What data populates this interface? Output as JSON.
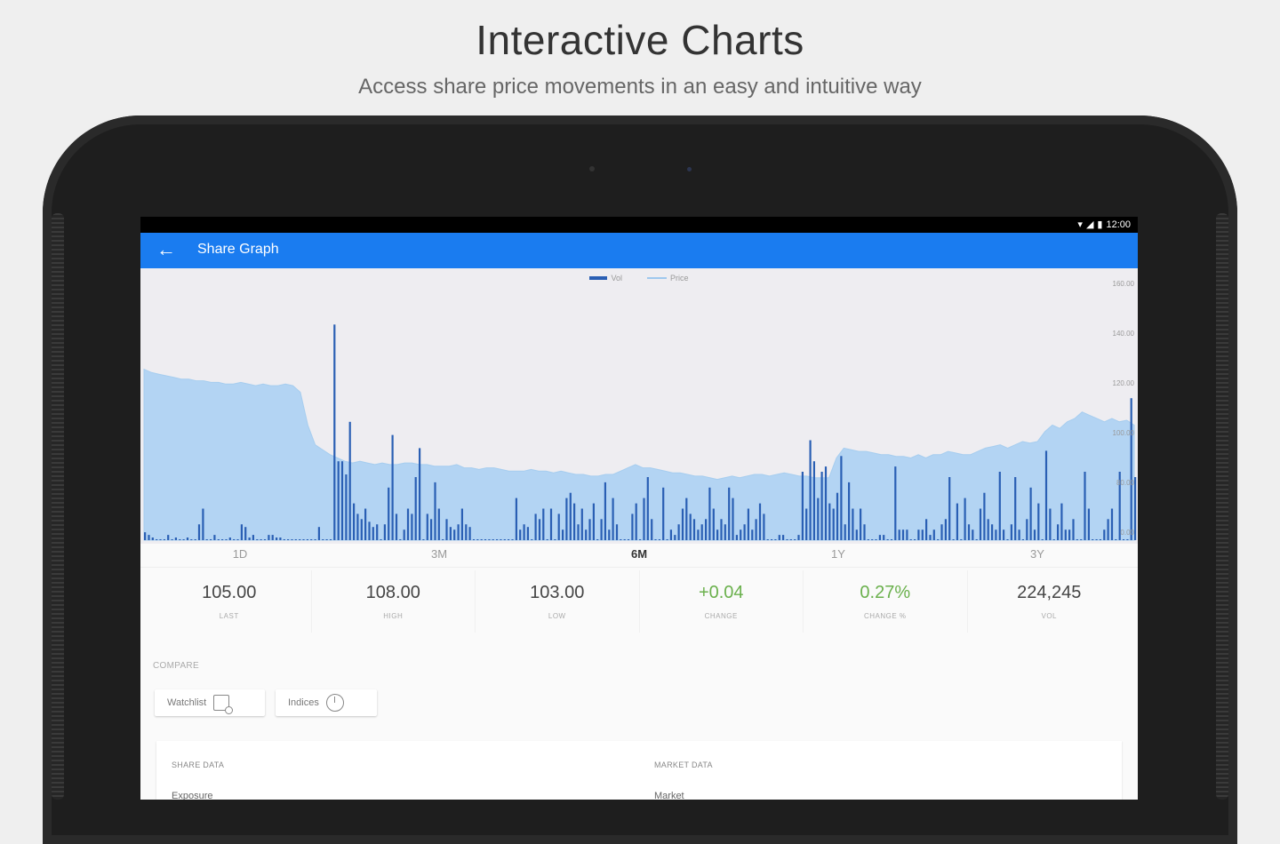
{
  "hero": {
    "title": "Interactive Charts",
    "subtitle": "Access share price movements in an easy and intuitive way"
  },
  "status_bar": {
    "time": "12:00",
    "icons": [
      "wifi-icon",
      "signal-icon",
      "battery-icon"
    ]
  },
  "app_bar": {
    "title": "Share Graph",
    "back_icon": "arrow-left-icon"
  },
  "colors": {
    "app_bar": "#1a7cf0",
    "volume_bar": "#2a5fb4",
    "price_area": "#b3d4f3",
    "positive": "#6ab04c"
  },
  "chart_data": {
    "type": "bar",
    "legend": [
      "Vol",
      "Price"
    ],
    "legend_placement": "top-center",
    "y_axis_side": "right",
    "yticks": [
      "160.00",
      "140.00",
      "120.00",
      "100.00",
      "80.00",
      "0.00"
    ],
    "series": [
      {
        "name": "Vol",
        "type": "bar",
        "values": [
          3,
          2,
          1,
          0,
          0,
          0,
          2,
          0,
          1,
          0,
          0,
          1,
          0,
          0,
          6,
          12,
          0,
          0,
          2,
          0,
          0,
          0,
          1,
          0,
          0,
          6,
          5,
          1,
          2,
          0,
          0,
          0,
          2,
          2,
          1,
          1,
          0,
          0,
          0,
          0,
          0,
          0,
          0,
          0,
          0,
          5,
          0,
          0,
          0,
          82,
          30,
          30,
          25,
          45,
          14,
          10,
          8,
          12,
          7,
          5,
          6,
          0,
          6,
          20,
          40,
          10,
          0,
          4,
          12,
          10,
          24,
          35,
          0,
          10,
          8,
          22,
          12,
          0,
          8,
          5,
          4,
          6,
          12,
          6,
          5,
          0,
          0,
          0,
          0,
          0,
          0,
          0,
          0,
          0,
          0,
          0,
          16,
          4,
          6,
          5,
          0,
          10,
          8,
          12,
          0,
          12,
          0,
          10,
          4,
          16,
          18,
          14,
          6,
          12,
          4,
          8,
          14,
          0,
          8,
          22,
          4,
          16,
          6,
          0,
          0,
          0,
          10,
          14,
          0,
          16,
          24,
          8,
          0,
          0,
          20,
          0,
          4,
          2,
          6,
          12,
          16,
          10,
          8,
          4,
          6,
          8,
          20,
          12,
          4,
          8,
          6,
          20,
          16,
          2,
          4,
          6,
          12,
          4,
          8,
          14,
          10,
          0,
          0,
          0,
          2,
          2,
          0,
          0,
          0,
          2,
          26,
          12,
          38,
          30,
          16,
          26,
          28,
          14,
          12,
          18,
          32,
          6,
          22,
          12,
          4,
          12,
          6,
          0,
          0,
          0,
          2,
          2,
          0,
          0,
          28,
          4,
          4,
          4,
          0,
          0,
          4,
          4,
          8,
          2,
          4,
          0,
          6,
          8,
          24,
          0,
          14,
          0,
          16,
          6,
          4,
          0,
          12,
          18,
          8,
          6,
          4,
          26,
          4,
          0,
          6,
          24,
          4,
          0,
          8,
          20,
          4,
          14,
          0,
          34,
          12,
          0,
          6,
          14,
          4,
          4,
          8,
          0,
          0,
          26,
          12,
          0,
          0,
          0,
          4,
          8,
          12,
          0,
          26,
          0,
          0,
          54,
          24
        ]
      },
      {
        "name": "Price",
        "type": "area",
        "values": [
          104,
          102,
          101,
          100,
          99,
          98,
          98,
          97,
          97,
          96,
          96,
          95,
          95,
          96,
          95,
          94,
          95,
          94,
          94,
          95,
          94,
          90,
          70,
          58,
          55,
          52,
          50,
          48,
          47,
          48,
          47,
          46,
          47,
          46,
          46,
          47,
          47,
          46,
          46,
          45,
          45,
          45,
          46,
          44,
          44,
          43,
          44,
          44,
          43,
          42,
          42,
          42,
          43,
          42,
          42,
          41,
          42,
          41,
          40,
          40,
          39,
          39,
          40,
          40,
          42,
          44,
          46,
          44,
          44,
          43,
          42,
          41,
          41,
          40,
          39,
          39,
          38,
          37,
          38,
          39,
          38,
          39,
          40,
          40,
          39,
          40,
          41,
          40,
          39,
          39,
          38,
          38,
          38,
          50,
          56,
          55,
          54,
          54,
          53,
          52,
          52,
          51,
          51,
          50,
          52,
          50,
          52,
          52,
          54,
          53,
          52,
          52,
          54,
          56,
          57,
          58,
          56,
          58,
          60,
          59,
          60,
          66,
          70,
          68,
          72,
          74,
          78,
          76,
          74,
          72,
          74,
          72,
          73,
          70
        ]
      }
    ]
  },
  "periods": [
    {
      "label": "1D",
      "active": false
    },
    {
      "label": "3M",
      "active": false
    },
    {
      "label": "6M",
      "active": true
    },
    {
      "label": "1Y",
      "active": false
    },
    {
      "label": "3Y",
      "active": false
    }
  ],
  "stats": [
    {
      "value": "105.00",
      "label": "LAST",
      "positive": false
    },
    {
      "value": "108.00",
      "label": "HIGH",
      "positive": false
    },
    {
      "value": "103.00",
      "label": "LOW",
      "positive": false
    },
    {
      "value": "+0.04",
      "label": "CHANGE",
      "positive": true
    },
    {
      "value": "0.27%",
      "label": "CHANGE %",
      "positive": true
    },
    {
      "value": "224,245",
      "label": "VOL",
      "positive": false
    }
  ],
  "compare": {
    "label": "COMPARE",
    "watchlist_label": "Watchlist",
    "watchlist_icon": "watchlist-icon",
    "indices_label": "Indices",
    "indices_icon": "pie-chart-icon"
  },
  "data_card": {
    "share_heading": "SHARE DATA",
    "share_first_row": "Exposure",
    "market_heading": "MARKET DATA",
    "market_first_row": "Market"
  }
}
